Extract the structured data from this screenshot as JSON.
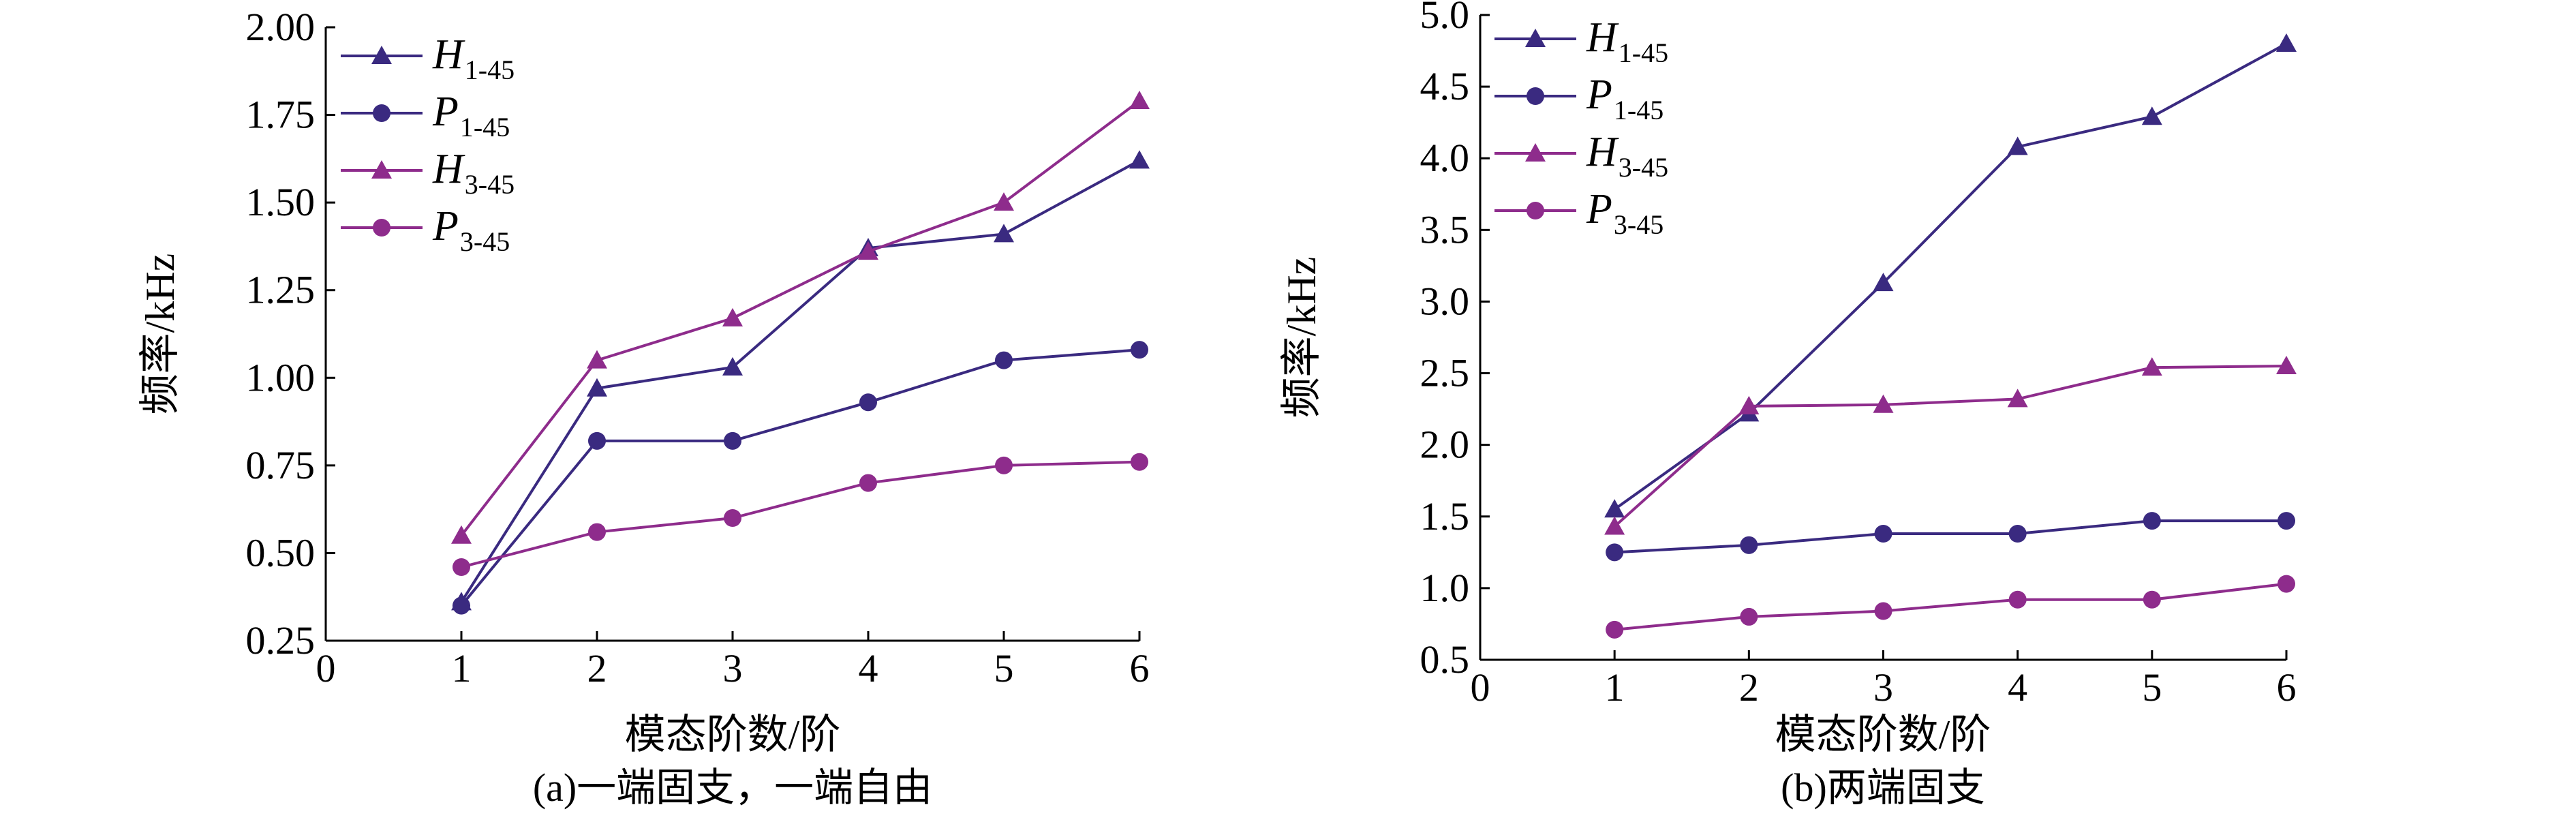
{
  "chart_data": [
    {
      "type": "line",
      "caption": "(a)一端固支，一端自由",
      "xlabel": "模态阶数/阶",
      "ylabel": "频率/kHz",
      "xlim": [
        0,
        6
      ],
      "ylim": [
        0.25,
        2.0
      ],
      "xticks": [
        0,
        1,
        2,
        3,
        4,
        5,
        6
      ],
      "yticks": [
        "0.25",
        "0.50",
        "0.75",
        "1.00",
        "1.25",
        "1.50",
        "1.75",
        "2.00"
      ],
      "legend_position": "top-left",
      "x": [
        1,
        2,
        3,
        4,
        5,
        6
      ],
      "series": [
        {
          "name": "H",
          "sub": "1-45",
          "marker": "triangle",
          "color": "#3a2a80",
          "values": [
            0.36,
            0.97,
            1.03,
            1.37,
            1.41,
            1.62
          ]
        },
        {
          "name": "P",
          "sub": "1-45",
          "marker": "circle",
          "color": "#3a2a80",
          "values": [
            0.35,
            0.82,
            0.82,
            0.93,
            1.05,
            1.08
          ]
        },
        {
          "name": "H",
          "sub": "3-45",
          "marker": "triangle",
          "color": "#8e2c8c",
          "values": [
            0.55,
            1.05,
            1.17,
            1.36,
            1.5,
            1.79
          ]
        },
        {
          "name": "P",
          "sub": "3-45",
          "marker": "circle",
          "color": "#8e2c8c",
          "values": [
            0.46,
            0.56,
            0.6,
            0.7,
            0.75,
            0.76
          ]
        }
      ]
    },
    {
      "type": "line",
      "caption": "(b)两端固支",
      "xlabel": "模态阶数/阶",
      "ylabel": "频率/kHz",
      "xlim": [
        0,
        6
      ],
      "ylim": [
        0.5,
        5.0
      ],
      "xticks": [
        0,
        1,
        2,
        3,
        4,
        5,
        6
      ],
      "yticks": [
        "0.5",
        "1.0",
        "1.5",
        "2.0",
        "2.5",
        "3.0",
        "3.5",
        "4.0",
        "4.5",
        "5.0"
      ],
      "legend_position": "top-left",
      "x": [
        1,
        2,
        3,
        4,
        5,
        6
      ],
      "series": [
        {
          "name": "H",
          "sub": "1-45",
          "marker": "triangle",
          "color": "#3a2a80",
          "values": [
            1.55,
            2.22,
            3.13,
            4.08,
            4.29,
            4.8
          ]
        },
        {
          "name": "P",
          "sub": "1-45",
          "marker": "circle",
          "color": "#3a2a80",
          "values": [
            1.25,
            1.3,
            1.38,
            1.38,
            1.47,
            1.47
          ]
        },
        {
          "name": "H",
          "sub": "3-45",
          "marker": "triangle",
          "color": "#8e2c8c",
          "values": [
            1.43,
            2.27,
            2.28,
            2.32,
            2.54,
            2.55
          ]
        },
        {
          "name": "P",
          "sub": "3-45",
          "marker": "circle",
          "color": "#8e2c8c",
          "values": [
            0.71,
            0.8,
            0.84,
            0.92,
            0.92,
            1.03
          ]
        }
      ]
    }
  ]
}
